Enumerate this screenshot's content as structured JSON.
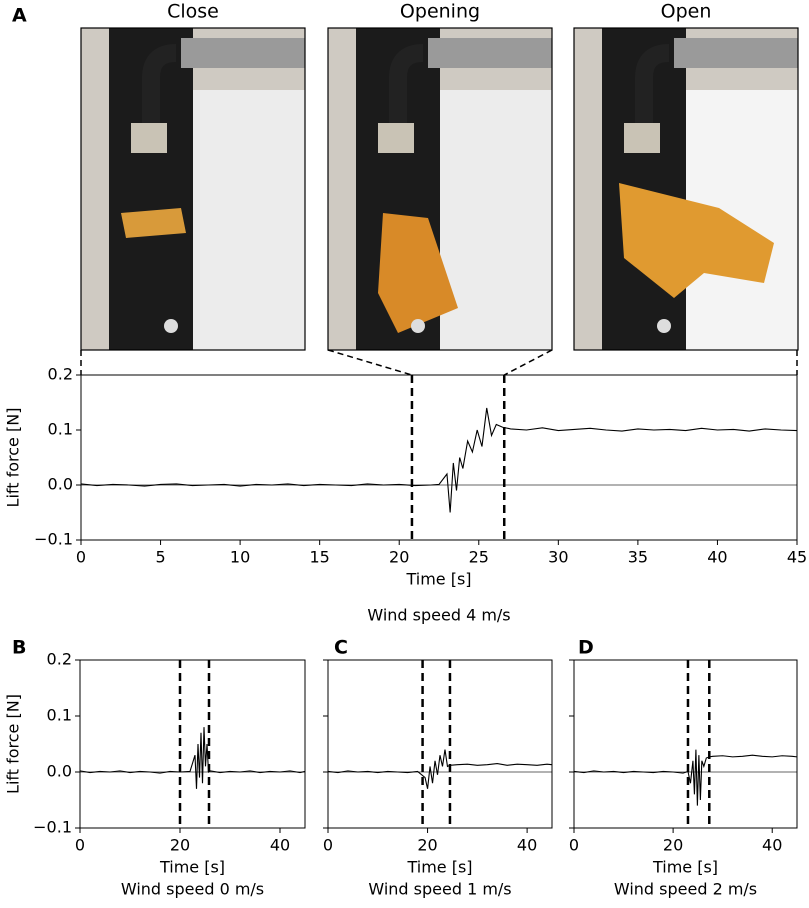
{
  "photos": {
    "labels": [
      "Close",
      "Opening",
      "Open"
    ]
  },
  "chart_data": [
    {
      "type": "line",
      "panel": "A",
      "xlabel": "Time [s]",
      "ylabel": "Lift force [N]",
      "caption": "Wind speed 4 m/s",
      "color": "#000000",
      "xlim": [
        0,
        45
      ],
      "ylim": [
        -0.1,
        0.2
      ],
      "xticks": [
        0,
        5,
        10,
        15,
        20,
        25,
        30,
        35,
        40,
        45
      ],
      "yticks": [
        {
          "value": -0.1,
          "label": "−0.1"
        },
        {
          "value": 0,
          "label": "0.0"
        },
        0.1,
        0.2
      ],
      "show_ytick_labels": true,
      "hline": 0,
      "vlines": [
        20.8,
        26.6
      ],
      "x": [
        0,
        1,
        2,
        3,
        4,
        5,
        6,
        7,
        8,
        9,
        10,
        11,
        12,
        13,
        14,
        15,
        16,
        17,
        18,
        19,
        20,
        21,
        22,
        22.5,
        23,
        23.2,
        23.4,
        23.6,
        23.8,
        24,
        24.3,
        24.6,
        24.9,
        25.2,
        25.5,
        25.8,
        26.1,
        26.5,
        27,
        28,
        29,
        30,
        31,
        32,
        33,
        34,
        35,
        36,
        37,
        38,
        39,
        40,
        41,
        42,
        43,
        44,
        45
      ],
      "values": [
        0.002,
        -0.001,
        0.001,
        0,
        -0.002,
        0.001,
        0.002,
        -0.001,
        0,
        0.001,
        -0.002,
        0.001,
        0,
        0.002,
        -0.001,
        0.001,
        0,
        -0.001,
        0.002,
        0,
        0.001,
        -0.001,
        0,
        0.001,
        0.02,
        -0.05,
        0.04,
        -0.01,
        0.05,
        0.03,
        0.08,
        0.06,
        0.1,
        0.07,
        0.14,
        0.09,
        0.11,
        0.105,
        0.102,
        0.1,
        0.104,
        0.099,
        0.101,
        0.103,
        0.1,
        0.098,
        0.102,
        0.1,
        0.101,
        0.099,
        0.103,
        0.1,
        0.101,
        0.098,
        0.102,
        0.1,
        0.099
      ]
    },
    {
      "type": "line",
      "panel": "B",
      "xlabel": "Time [s]",
      "ylabel": "Lift force [N]",
      "caption": "Wind speed 0 m/s",
      "color": "#000000",
      "xlim": [
        0,
        45
      ],
      "ylim": [
        -0.1,
        0.2
      ],
      "xticks": [
        0,
        20,
        40
      ],
      "yticks": [
        {
          "value": -0.1,
          "label": "−0.1"
        },
        {
          "value": 0,
          "label": "0.0"
        },
        0.1,
        0.2
      ],
      "show_ytick_labels": true,
      "hline": 0,
      "vlines": [
        20,
        25.8
      ],
      "x": [
        0,
        2,
        4,
        6,
        8,
        10,
        12,
        14,
        16,
        18,
        20,
        22,
        23,
        23.3,
        23.6,
        23.9,
        24.2,
        24.5,
        24.8,
        25.1,
        25.4,
        25.7,
        26,
        28,
        30,
        32,
        34,
        36,
        38,
        40,
        42,
        44,
        45
      ],
      "values": [
        0.002,
        -0.001,
        0.001,
        0,
        0.002,
        -0.001,
        0.001,
        0,
        -0.002,
        0.001,
        0,
        0.001,
        0.03,
        -0.03,
        0.05,
        -0.01,
        0.07,
        -0.02,
        0.08,
        0.01,
        0.05,
        0,
        0.002,
        -0.001,
        0.001,
        0,
        0.002,
        -0.001,
        0.001,
        0,
        0.002,
        -0.001,
        0.001
      ]
    },
    {
      "type": "line",
      "panel": "C",
      "xlabel": "Time [s]",
      "caption": "Wind speed 1 m/s",
      "color": "#000000",
      "xlim": [
        0,
        45
      ],
      "ylim": [
        -0.1,
        0.2
      ],
      "xticks": [
        0,
        20,
        40
      ],
      "yticks": [
        -0.1,
        0,
        0.1,
        0.2
      ],
      "show_ytick_labels": false,
      "hline": 0,
      "vlines": [
        19,
        24.5
      ],
      "x": [
        0,
        2,
        4,
        6,
        8,
        10,
        12,
        14,
        16,
        18,
        19.5,
        20,
        20.5,
        21,
        21.5,
        22,
        22.5,
        23,
        23.5,
        24,
        24.5,
        26,
        28,
        30,
        32,
        34,
        36,
        38,
        40,
        42,
        44,
        45
      ],
      "values": [
        0.001,
        -0.001,
        0.002,
        0,
        0.001,
        -0.001,
        0.001,
        0,
        -0.001,
        0.001,
        -0.01,
        -0.03,
        0.01,
        -0.02,
        0.02,
        -0.005,
        0.03,
        0.01,
        0.04,
        0.01,
        0.012,
        0.013,
        0.014,
        0.012,
        0.013,
        0.015,
        0.012,
        0.014,
        0.013,
        0.012,
        0.014,
        0.013
      ]
    },
    {
      "type": "line",
      "panel": "D",
      "xlabel": "Time [s]",
      "caption": "Wind speed 2 m/s",
      "color": "#000000",
      "xlim": [
        0,
        45
      ],
      "ylim": [
        -0.1,
        0.2
      ],
      "xticks": [
        0,
        20,
        40
      ],
      "yticks": [
        -0.1,
        0,
        0.1,
        0.2
      ],
      "show_ytick_labels": false,
      "hline": 0,
      "vlines": [
        23,
        27.3
      ],
      "x": [
        0,
        2,
        4,
        6,
        8,
        10,
        12,
        14,
        16,
        18,
        20,
        22,
        23,
        23.5,
        24,
        24.3,
        24.6,
        24.9,
        25.2,
        25.5,
        25.8,
        26.2,
        26.7,
        27.3,
        28,
        30,
        32,
        34,
        36,
        38,
        40,
        42,
        44,
        45
      ],
      "values": [
        0.001,
        -0.001,
        0.002,
        0,
        0.001,
        -0.001,
        0.001,
        0,
        -0.001,
        0.001,
        0,
        -0.002,
        0.001,
        -0.02,
        0.02,
        -0.04,
        0.04,
        -0.06,
        0.03,
        -0.05,
        0.02,
        0.01,
        0.025,
        0.027,
        0.028,
        0.029,
        0.027,
        0.028,
        0.03,
        0.028,
        0.027,
        0.029,
        0.028,
        0.027
      ]
    }
  ]
}
